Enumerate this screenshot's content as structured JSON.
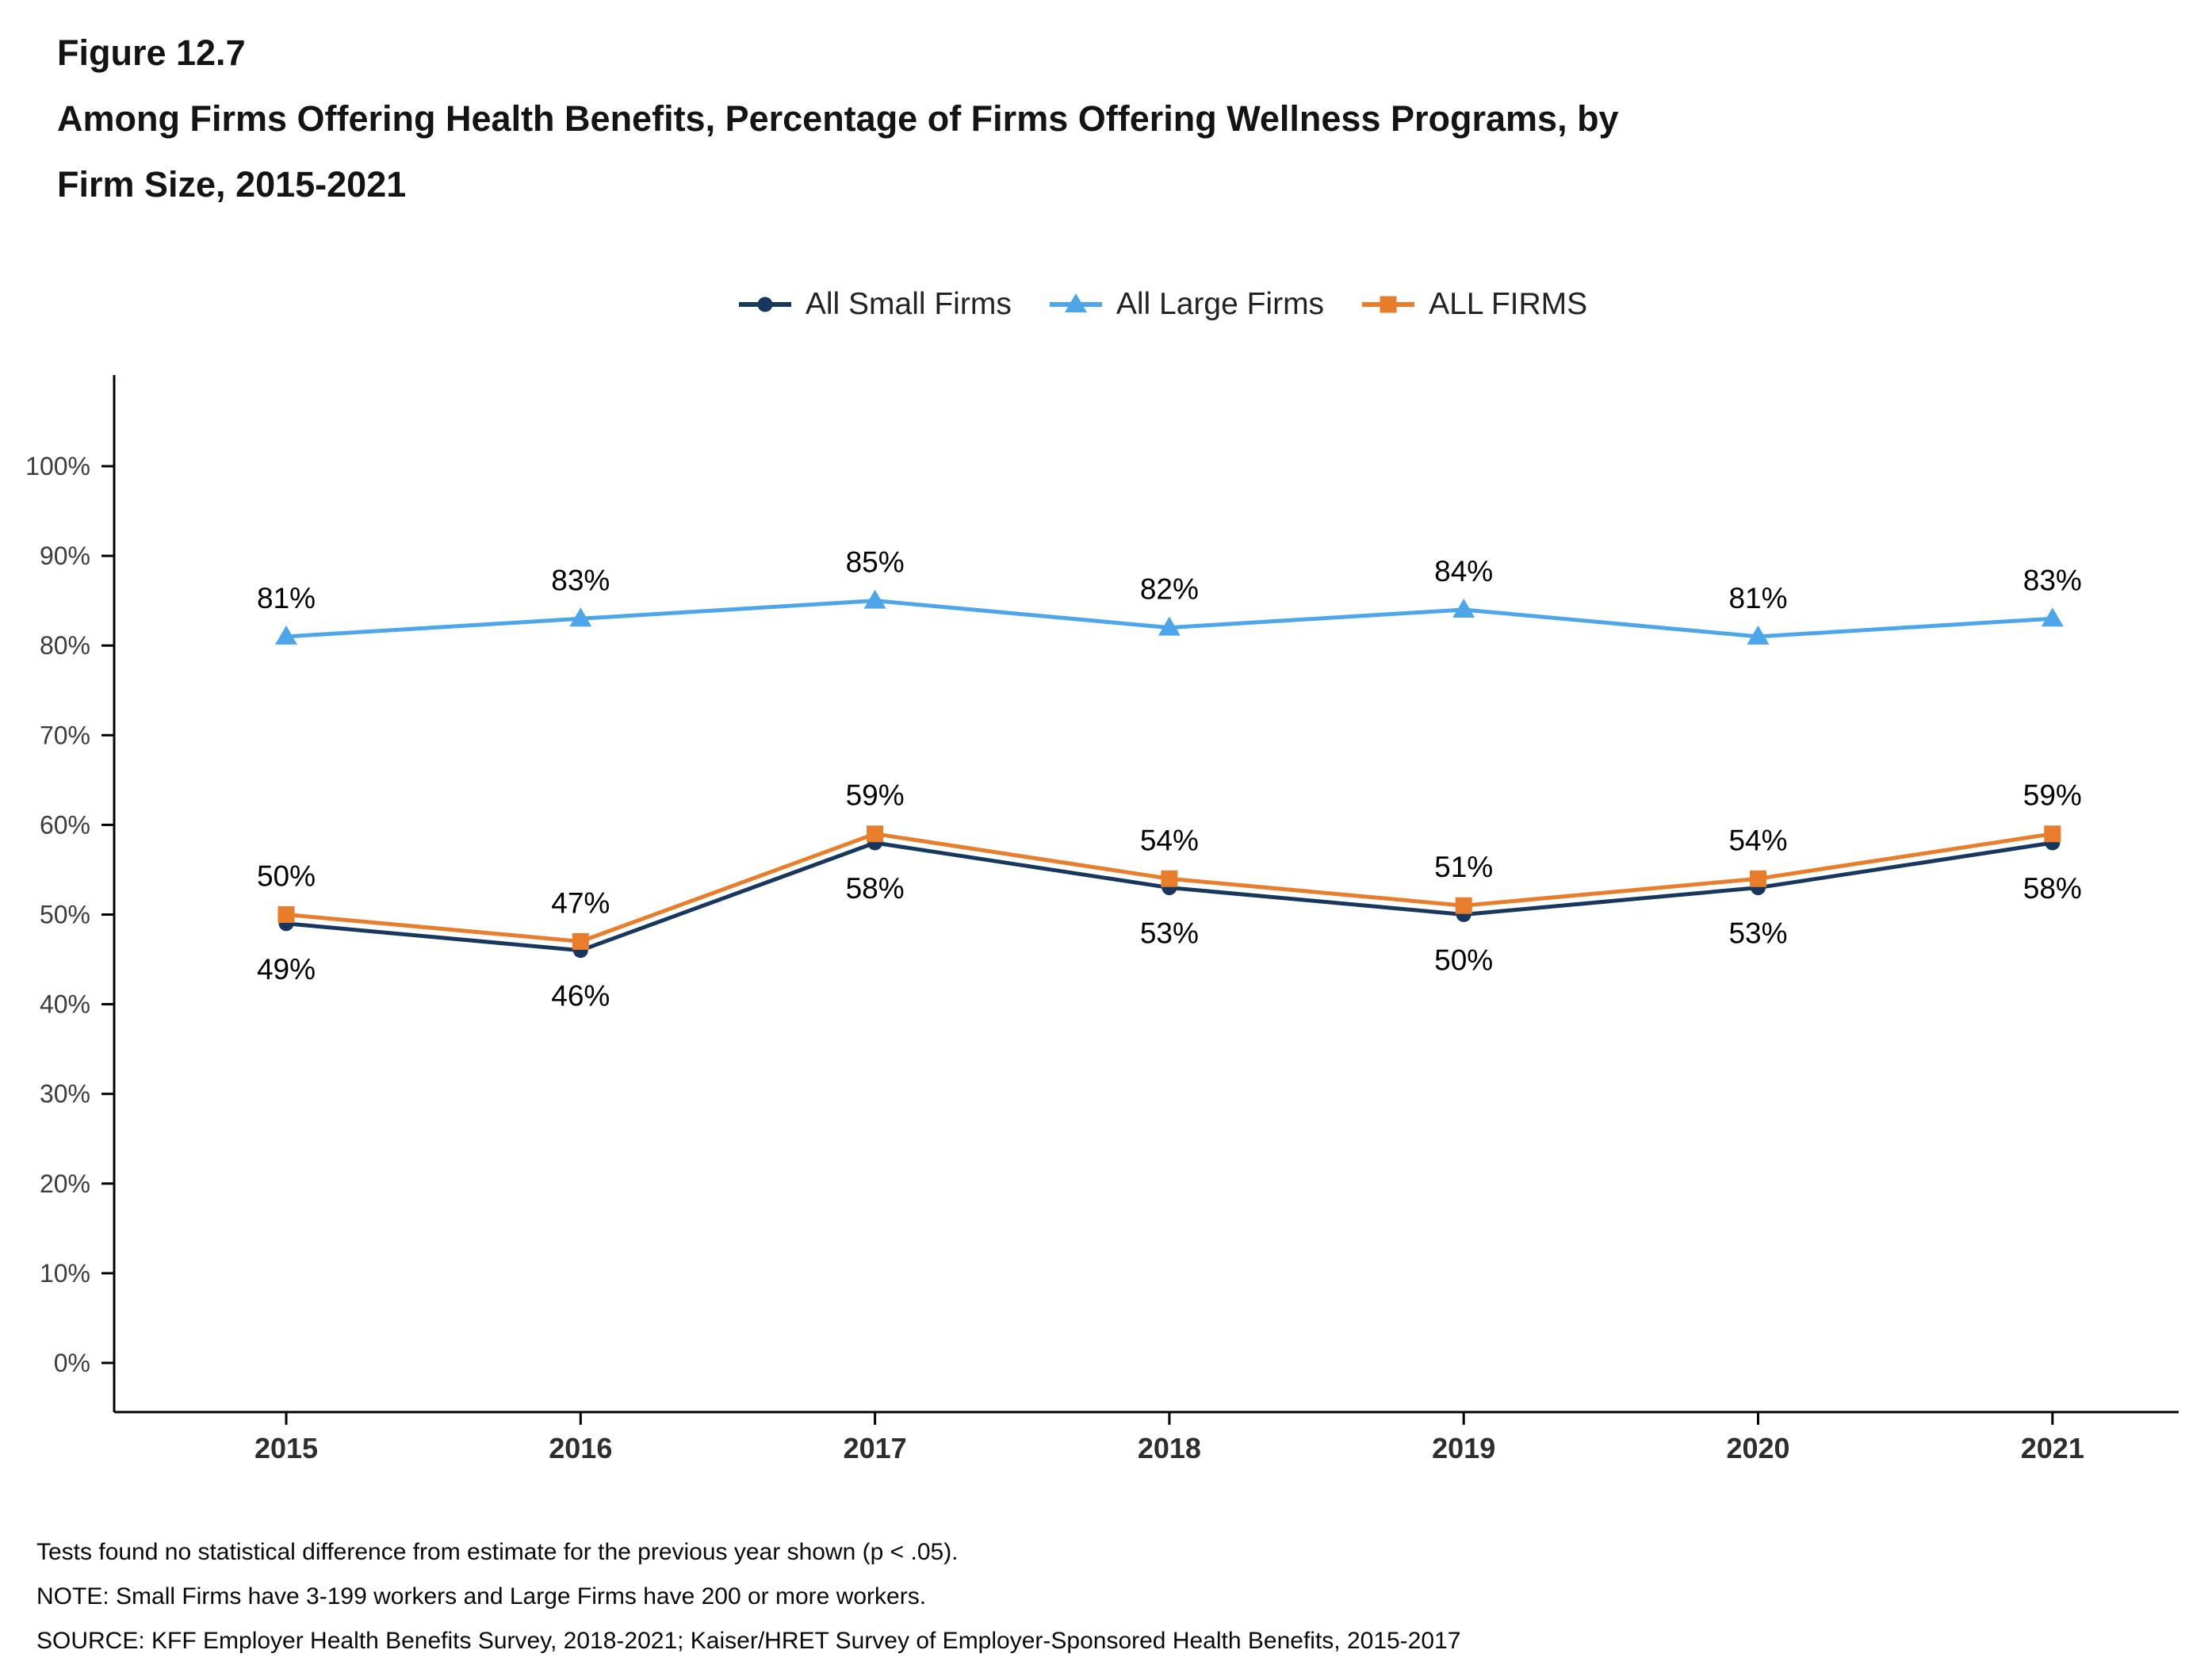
{
  "figure": {
    "label": "Figure 12.7",
    "title_line1": "Among Firms Offering Health Benefits, Percentage of Firms Offering Wellness Programs, by",
    "title_line2": "Firm Size, 2015-2021"
  },
  "chart_data": {
    "type": "line",
    "title": "Among Firms Offering Health Benefits, Percentage of Firms Offering Wellness Programs, by Firm Size, 2015-2021",
    "categories": [
      "2015",
      "2016",
      "2017",
      "2018",
      "2019",
      "2020",
      "2021"
    ],
    "series": [
      {
        "name": "All Small Firms",
        "color": "#17375E",
        "marker": "circle",
        "label_position": "below",
        "values": [
          49,
          46,
          58,
          53,
          50,
          53,
          58
        ]
      },
      {
        "name": "All Large Firms",
        "color": "#4DA6EA",
        "marker": "triangle",
        "label_position": "above",
        "values": [
          81,
          83,
          85,
          82,
          84,
          81,
          83
        ]
      },
      {
        "name": "ALL FIRMS",
        "color": "#E87D2C",
        "marker": "square",
        "label_position": "above",
        "values": [
          50,
          47,
          59,
          54,
          51,
          54,
          59
        ]
      }
    ],
    "y_axis": {
      "min": 0,
      "max": 100,
      "ticks": [
        0,
        10,
        20,
        30,
        40,
        50,
        60,
        70,
        80,
        90,
        100
      ],
      "suffix": "%"
    },
    "value_suffix": "%",
    "grid": false,
    "legend_position": "top"
  },
  "footnotes": [
    "Tests found no statistical difference from estimate for the previous year shown (p < .05).",
    "NOTE: Small Firms have 3-199 workers and Large Firms have 200 or more workers.",
    "SOURCE: KFF Employer Health Benefits Survey, 2018-2021; Kaiser/HRET Survey of Employer-Sponsored Health Benefits, 2015-2017"
  ]
}
